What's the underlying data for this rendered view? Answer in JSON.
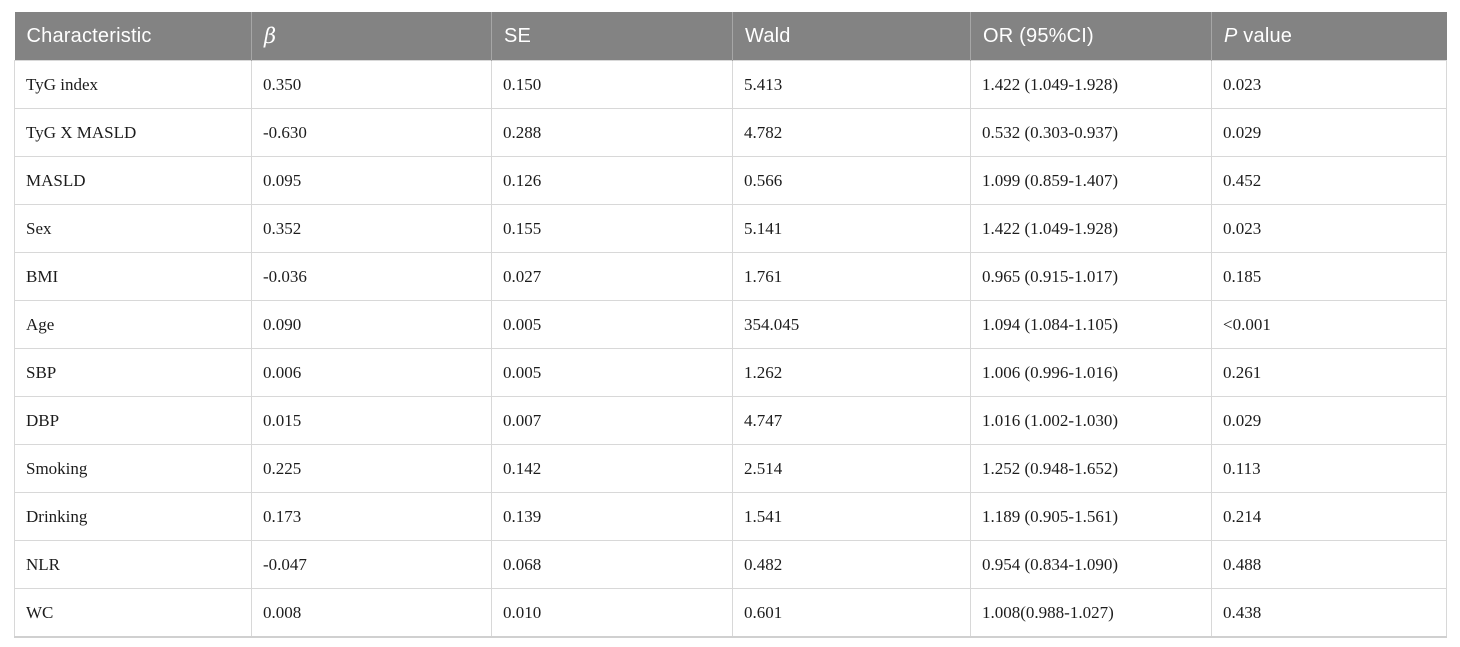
{
  "table": {
    "columns": [
      {
        "label": "Characteristic"
      },
      {
        "label": "β"
      },
      {
        "label": "SE"
      },
      {
        "label": "Wald"
      },
      {
        "label": "OR (95%CI)"
      },
      {
        "label": "P value"
      }
    ],
    "rows": [
      [
        "TyG index",
        "0.350",
        "0.150",
        "5.413",
        "1.422 (1.049-1.928)",
        "0.023"
      ],
      [
        "TyG X MASLD",
        "-0.630",
        "0.288",
        "4.782",
        "0.532 (0.303-0.937)",
        "0.029"
      ],
      [
        "MASLD",
        "0.095",
        "0.126",
        "0.566",
        "1.099 (0.859-1.407)",
        "0.452"
      ],
      [
        "Sex",
        "0.352",
        "0.155",
        "5.141",
        "1.422 (1.049-1.928)",
        "0.023"
      ],
      [
        "BMI",
        "-0.036",
        "0.027",
        "1.761",
        "0.965 (0.915-1.017)",
        "0.185"
      ],
      [
        "Age",
        "0.090",
        "0.005",
        "354.045",
        "1.094 (1.084-1.105)",
        "<0.001"
      ],
      [
        "SBP",
        "0.006",
        "0.005",
        "1.262",
        "1.006 (0.996-1.016)",
        "0.261"
      ],
      [
        "DBP",
        "0.015",
        "0.007",
        "4.747",
        "1.016 (1.002-1.030)",
        "0.029"
      ],
      [
        "Smoking",
        "0.225",
        "0.142",
        "2.514",
        "1.252 (0.948-1.652)",
        "0.113"
      ],
      [
        "Drinking",
        "0.173",
        "0.139",
        "1.541",
        "1.189 (0.905-1.561)",
        "0.214"
      ],
      [
        "NLR",
        "-0.047",
        "0.068",
        "0.482",
        "0.954 (0.834-1.090)",
        "0.488"
      ],
      [
        "WC",
        "0.008",
        "0.010",
        "0.601",
        "1.008(0.988-1.027)",
        "0.438"
      ]
    ],
    "cell_names": [
      "cell-characteristic",
      "cell-beta",
      "cell-se",
      "cell-wald",
      "cell-or-ci",
      "cell-p-value"
    ]
  },
  "colors": {
    "header_background": "#838383",
    "header_text": "#ffffff",
    "body_text": "#1c1c1c",
    "grid_line": "#d8d8d8"
  }
}
